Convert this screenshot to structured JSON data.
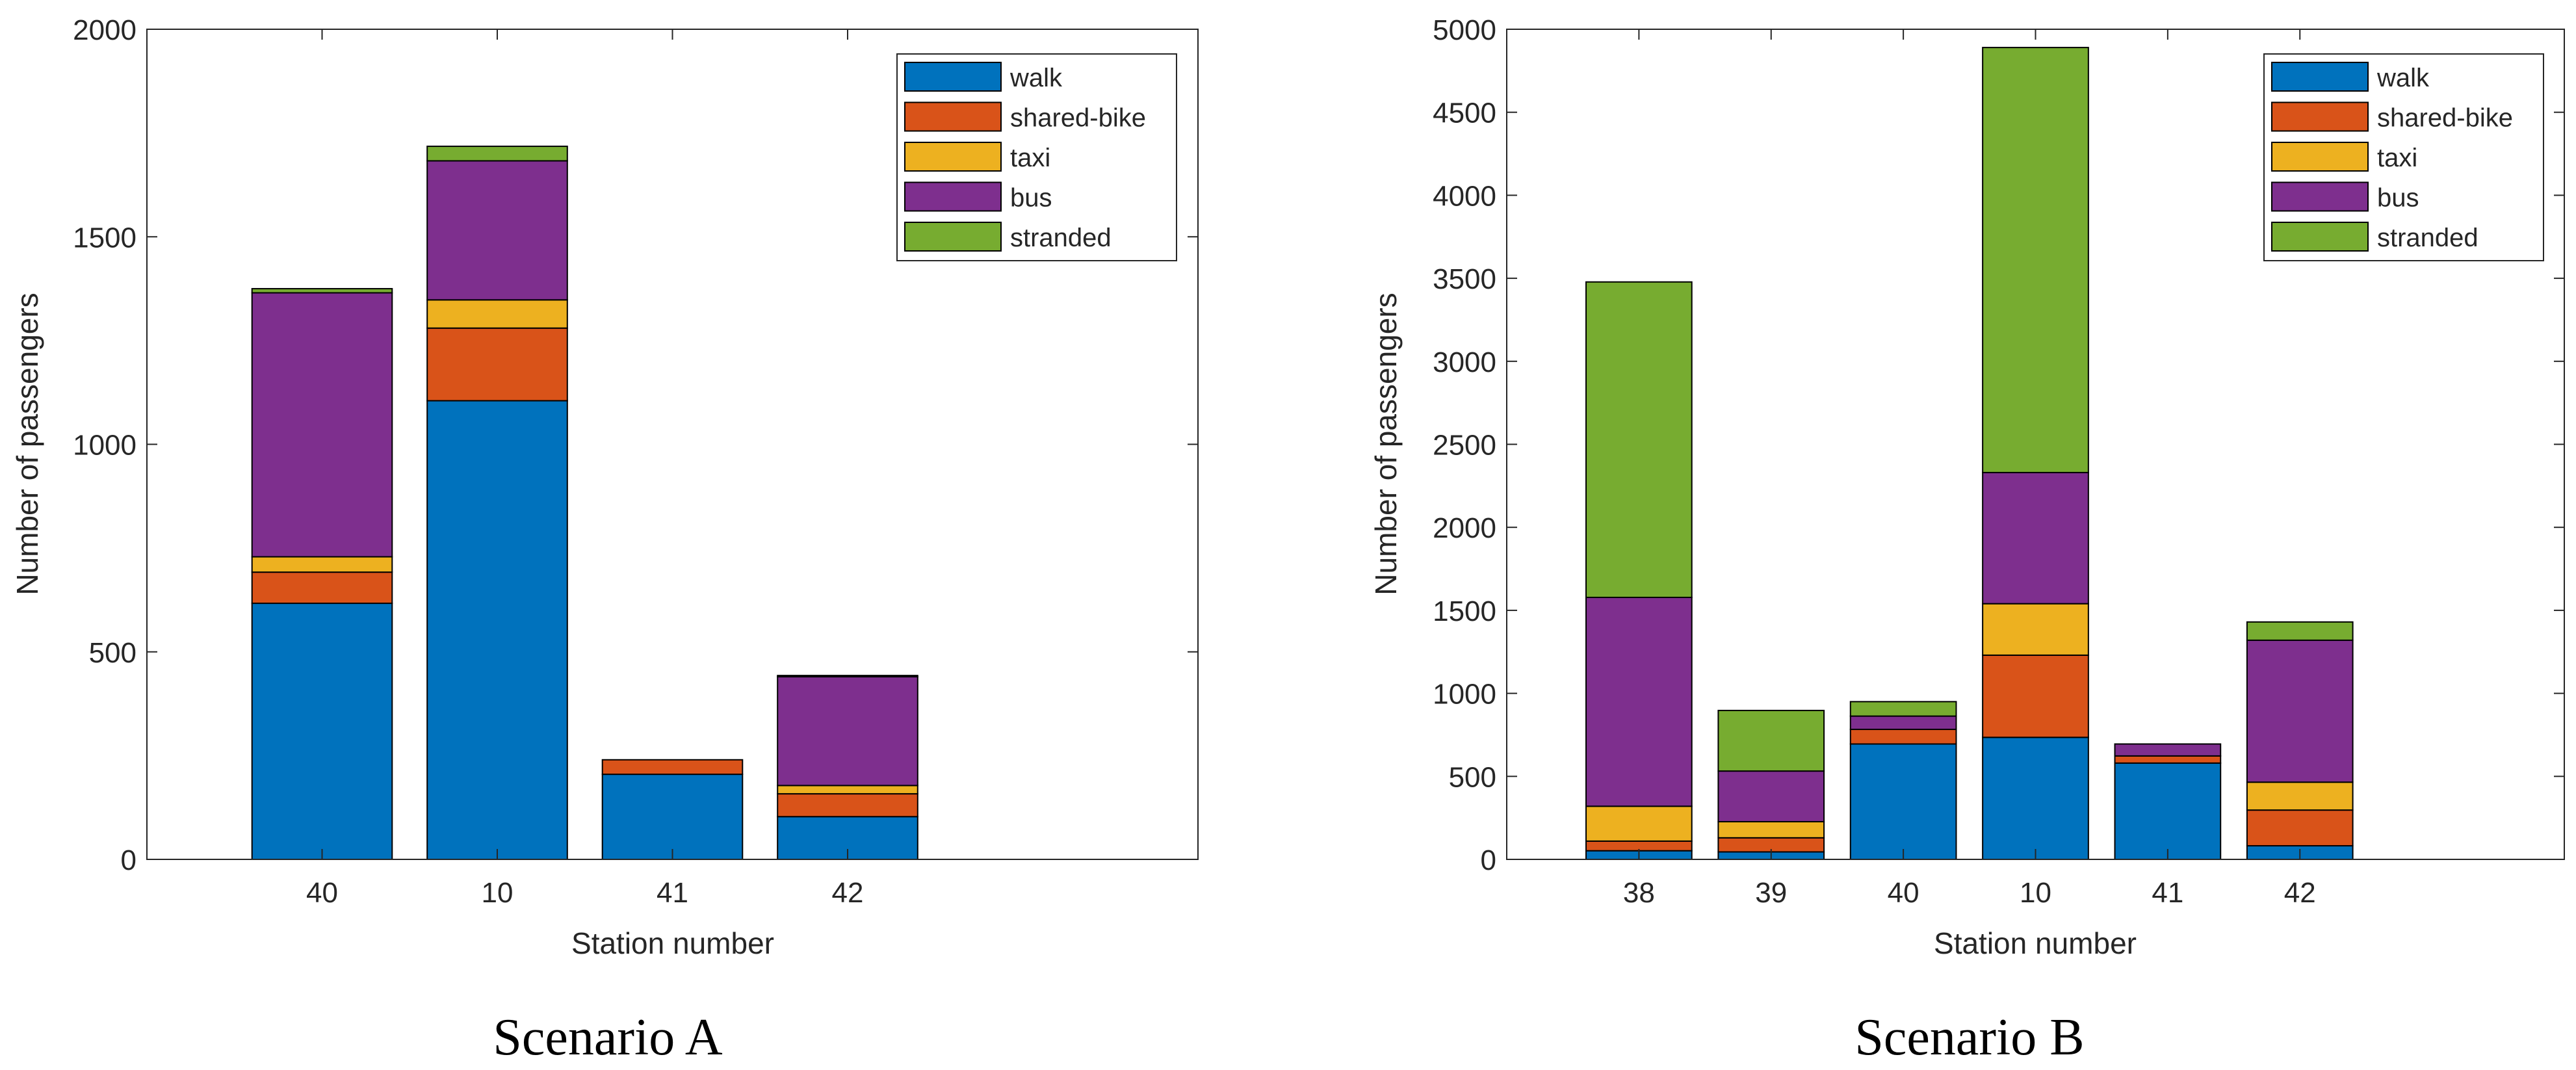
{
  "colors": {
    "walk": "#0072BD",
    "shared-bike": "#D95319",
    "taxi": "#EDB120",
    "bus": "#7E2F8E",
    "stranded": "#77AC30"
  },
  "chart_data": [
    {
      "type": "bar",
      "stacked": true,
      "caption": "Scenario A",
      "xlabel": "Station number",
      "ylabel": "Number of passengers",
      "ylim": [
        0,
        2000
      ],
      "yticks": [
        "0",
        "500",
        "1000",
        "1500",
        "2000"
      ],
      "xlim": [
        0,
        6
      ],
      "categories": [
        "40",
        "10",
        "41",
        "42"
      ],
      "legend": {
        "position": "top-right"
      },
      "series": [
        {
          "name": "walk",
          "values": [
            617,
            1105,
            205,
            103
          ]
        },
        {
          "name": "shared-bike",
          "values": [
            75,
            175,
            35,
            55
          ]
        },
        {
          "name": "taxi",
          "values": [
            37,
            68,
            0,
            20
          ]
        },
        {
          "name": "bus",
          "values": [
            636,
            335,
            0,
            262
          ]
        },
        {
          "name": "stranded",
          "values": [
            10,
            35,
            0,
            3
          ]
        }
      ]
    },
    {
      "type": "bar",
      "stacked": true,
      "caption": "Scenario B",
      "xlabel": "Station number",
      "ylabel": "Number of passengers",
      "ylim": [
        0,
        5000
      ],
      "yticks": [
        "0",
        "500",
        "1000",
        "1500",
        "2000",
        "2500",
        "3000",
        "3500",
        "4000",
        "4500",
        "5000"
      ],
      "xlim": [
        0,
        8
      ],
      "categories": [
        "38",
        "39",
        "40",
        "10",
        "41",
        "42"
      ],
      "legend": {
        "position": "top-right"
      },
      "series": [
        {
          "name": "walk",
          "values": [
            52,
            45,
            695,
            735,
            580,
            82
          ]
        },
        {
          "name": "shared-bike",
          "values": [
            58,
            85,
            88,
            495,
            43,
            215
          ]
        },
        {
          "name": "taxi",
          "values": [
            210,
            97,
            0,
            310,
            0,
            168
          ]
        },
        {
          "name": "bus",
          "values": [
            1258,
            305,
            80,
            790,
            72,
            855
          ]
        },
        {
          "name": "stranded",
          "values": [
            1900,
            365,
            87,
            2560,
            0,
            110
          ]
        }
      ]
    }
  ]
}
